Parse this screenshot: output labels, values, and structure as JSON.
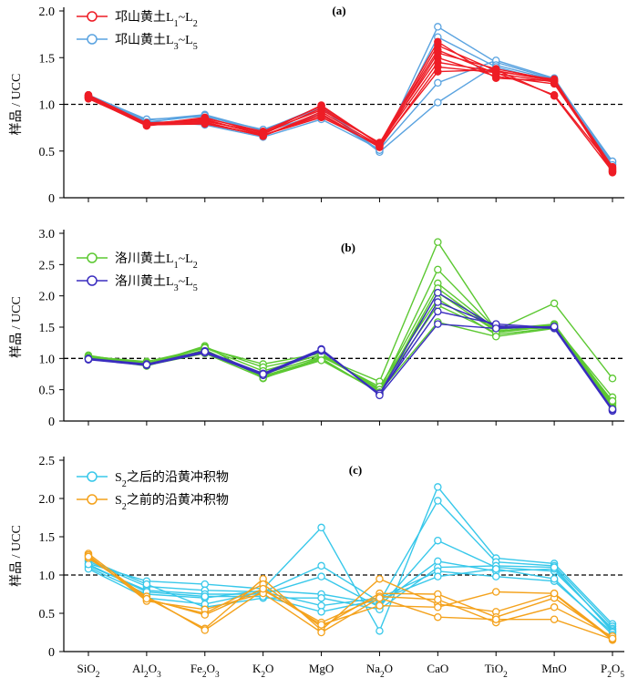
{
  "chart_data": {
    "type": "line",
    "categories": [
      "SiO₂",
      "Al₂O₃",
      "Fe₂O₃",
      "K₂O",
      "MgO",
      "Na₂O",
      "CaO",
      "TiO₂",
      "MnO",
      "P₂O₅"
    ],
    "reference_line": 1.0,
    "panels": [
      {
        "label": "(a)",
        "ylabel": "样品 / UCC",
        "ylim": [
          0,
          2.0
        ],
        "yticks": [
          "0",
          "0.5",
          "1.0",
          "1.5",
          "2.0"
        ],
        "groups": [
          {
            "name": "邛山黄土L₁~L₂",
            "color": "#ee1c25",
            "series": [
              [
                1.08,
                0.78,
                0.8,
                0.66,
                0.92,
                0.56,
                1.63,
                1.36,
                1.25,
                0.28
              ],
              [
                1.1,
                0.8,
                0.83,
                0.68,
                0.96,
                0.58,
                1.58,
                1.33,
                1.24,
                0.3
              ],
              [
                1.07,
                0.77,
                0.84,
                0.67,
                0.88,
                0.55,
                1.55,
                1.38,
                1.26,
                0.27
              ],
              [
                1.09,
                0.79,
                0.82,
                0.7,
                0.94,
                0.59,
                1.5,
                1.3,
                1.22,
                0.31
              ],
              [
                1.06,
                0.78,
                0.86,
                0.69,
                0.99,
                0.57,
                1.45,
                1.35,
                1.27,
                0.29
              ],
              [
                1.08,
                0.8,
                0.81,
                0.66,
                0.9,
                0.54,
                1.4,
                1.34,
                1.1,
                0.32
              ],
              [
                1.07,
                0.79,
                0.85,
                0.71,
                0.98,
                0.58,
                1.67,
                1.28,
                1.25,
                0.33
              ],
              [
                1.1,
                0.78,
                0.79,
                0.67,
                0.86,
                0.56,
                1.35,
                1.37,
                1.09,
                0.28
              ]
            ]
          },
          {
            "name": "邛山黄土L₃~L₅",
            "color": "#5aa3e0",
            "series": [
              [
                1.09,
                0.83,
                0.89,
                0.72,
                0.98,
                0.5,
                1.83,
                1.45,
                1.27,
                0.38
              ],
              [
                1.08,
                0.82,
                0.78,
                0.65,
                0.84,
                0.52,
                1.23,
                1.47,
                1.28,
                0.36
              ],
              [
                1.1,
                0.84,
                0.87,
                0.73,
                0.96,
                0.49,
                1.02,
                1.42,
                1.26,
                0.39
              ],
              [
                1.07,
                0.81,
                0.88,
                0.7,
                0.9,
                0.51,
                1.72,
                1.4,
                1.24,
                0.35
              ]
            ]
          }
        ]
      },
      {
        "label": "(b)",
        "ylabel": "样品 / UCC",
        "ylim": [
          0,
          3.0
        ],
        "yticks": [
          "0",
          "0.5",
          "1.0",
          "1.5",
          "2.0",
          "2.5",
          "3.0"
        ],
        "groups": [
          {
            "name": "洛川黄土L₁~L₂",
            "color": "#5cc832",
            "series": [
              [
                1.05,
                0.9,
                1.2,
                0.68,
                1.02,
                0.63,
                2.86,
                1.45,
                1.88,
                0.68
              ],
              [
                1.03,
                0.95,
                1.16,
                0.91,
                1.08,
                0.48,
                2.42,
                1.47,
                1.52,
                0.38
              ],
              [
                1.02,
                0.92,
                1.18,
                0.86,
                1.05,
                0.52,
                2.2,
                1.46,
                1.55,
                0.3
              ],
              [
                1.0,
                0.91,
                1.1,
                0.72,
                1.0,
                0.45,
                2.12,
                1.44,
                1.5,
                0.28
              ],
              [
                1.01,
                0.88,
                1.14,
                0.7,
                0.98,
                0.47,
                2.05,
                1.43,
                1.54,
                0.25
              ],
              [
                1.04,
                0.93,
                1.12,
                0.75,
                1.03,
                0.55,
                1.95,
                1.38,
                1.49,
                0.32
              ],
              [
                1.02,
                0.9,
                1.17,
                0.8,
                1.06,
                0.5,
                1.85,
                1.41,
                1.52,
                0.22
              ],
              [
                1.0,
                0.89,
                1.08,
                0.69,
                0.97,
                0.46,
                1.58,
                1.35,
                1.48,
                0.2
              ]
            ]
          },
          {
            "name": "洛川黄土L₃~L₅",
            "color": "#3a2dbf",
            "series": [
              [
                0.99,
                0.9,
                1.1,
                0.74,
                1.13,
                0.43,
                2.05,
                1.5,
                1.5,
                0.17
              ],
              [
                1.0,
                0.91,
                1.12,
                0.76,
                1.15,
                0.42,
                1.9,
                1.52,
                1.48,
                0.16
              ],
              [
                0.98,
                0.89,
                1.09,
                0.73,
                1.12,
                0.44,
                1.75,
                1.55,
                1.49,
                0.18
              ],
              [
                0.99,
                0.9,
                1.11,
                0.75,
                1.14,
                0.41,
                1.55,
                1.48,
                1.51,
                0.19
              ]
            ]
          }
        ]
      },
      {
        "label": "(c)",
        "ylabel": "样品 / UCC",
        "ylim": [
          0,
          2.5
        ],
        "yticks": [
          "0",
          "0.5",
          "1.0",
          "1.5",
          "2.0",
          "2.5"
        ],
        "groups": [
          {
            "name": "S₂之后的沿黄冲积物",
            "color": "#38c8ea",
            "series": [
              [
                1.15,
                0.92,
                0.88,
                0.82,
                1.62,
                0.27,
                2.15,
                1.22,
                1.15,
                0.36
              ],
              [
                1.18,
                0.85,
                0.8,
                0.78,
                1.12,
                0.65,
                1.97,
                1.17,
                1.12,
                0.33
              ],
              [
                1.12,
                0.8,
                0.75,
                0.75,
                0.98,
                0.58,
                1.45,
                1.1,
                1.05,
                0.3
              ],
              [
                1.1,
                0.75,
                0.7,
                0.8,
                0.75,
                0.62,
                1.18,
                1.05,
                1.08,
                0.28
              ],
              [
                1.2,
                0.88,
                0.58,
                0.7,
                0.7,
                0.55,
                1.1,
                1.12,
                1.1,
                0.26
              ],
              [
                1.08,
                0.7,
                0.62,
                0.78,
                0.6,
                0.7,
                1.05,
                0.98,
                0.92,
                0.25
              ],
              [
                1.14,
                0.78,
                0.72,
                0.72,
                0.52,
                0.68,
                0.98,
                1.08,
                0.95,
                0.22
              ]
            ]
          },
          {
            "name": "S₂之前的沿黄冲积物",
            "color": "#f4a21c",
            "series": [
              [
                1.28,
                0.7,
                0.3,
                0.95,
                0.28,
                0.95,
                0.62,
                0.52,
                0.75,
                0.15
              ],
              [
                1.25,
                0.68,
                0.5,
                0.88,
                0.32,
                0.76,
                0.75,
                0.45,
                0.7,
                0.18
              ],
              [
                1.22,
                0.72,
                0.28,
                0.8,
                0.38,
                0.72,
                0.68,
                0.38,
                0.58,
                0.2
              ],
              [
                1.26,
                0.66,
                0.55,
                0.76,
                0.25,
                0.7,
                0.45,
                0.42,
                0.42,
                0.16
              ],
              [
                1.24,
                0.69,
                0.48,
                0.82,
                0.35,
                0.6,
                0.58,
                0.78,
                0.76,
                0.17
              ]
            ]
          }
        ]
      }
    ]
  }
}
